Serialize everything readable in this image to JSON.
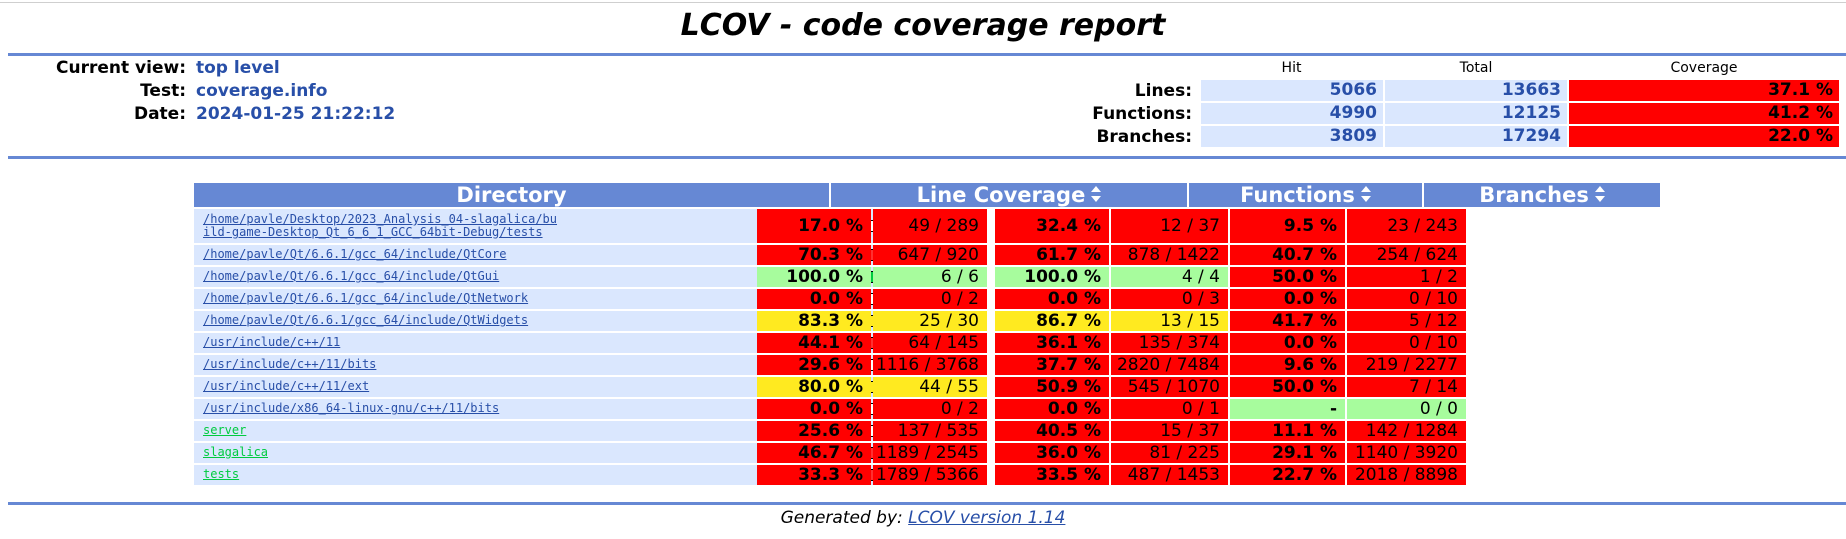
{
  "title": "LCOV - code coverage report",
  "info": {
    "current_view_label": "Current view:",
    "current_view": "top level",
    "test_label": "Test:",
    "test": "coverage.info",
    "date_label": "Date:",
    "date": "2024-01-25 21:22:12"
  },
  "summary": {
    "hit_header": "Hit",
    "total_header": "Total",
    "coverage_header": "Coverage",
    "rows": [
      {
        "label": "Lines:",
        "hit": "5066",
        "total": "13663",
        "coverage": "37.1 %"
      },
      {
        "label": "Functions:",
        "hit": "4990",
        "total": "12125",
        "coverage": "41.2 %"
      },
      {
        "label": "Branches:",
        "hit": "3809",
        "total": "17294",
        "coverage": "22.0 %"
      }
    ]
  },
  "table": {
    "headers": {
      "directory": "Directory",
      "line_coverage": "Line Coverage",
      "functions": "Functions",
      "branches": "Branches"
    },
    "rows": [
      {
        "dir": "/home/pavle/Desktop/2023_Analysis_04-slagalica/build-game-Desktop_Qt_6_6_1_GCC_64bit-Debug/tests",
        "link": "blue",
        "line_fill": 0.17,
        "line_pct": "17.0 %",
        "line_cnt": "49 / 289",
        "line_lvl": "lo",
        "fn_pct": "32.4 %",
        "fn_cnt": "12 / 37",
        "fn_lvl": "lo",
        "br_pct": "9.5 %",
        "br_cnt": "23 / 243",
        "br_lvl": "lo"
      },
      {
        "dir": "/home/pavle/Qt/6.6.1/gcc_64/include/QtCore",
        "link": "blue",
        "line_fill": 0.703,
        "line_pct": "70.3 %",
        "line_cnt": "647 / 920",
        "line_lvl": "lo",
        "fn_pct": "61.7 %",
        "fn_cnt": "878 / 1422",
        "fn_lvl": "lo",
        "br_pct": "40.7 %",
        "br_cnt": "254 / 624",
        "br_lvl": "lo"
      },
      {
        "dir": "/home/pavle/Qt/6.6.1/gcc_64/include/QtGui",
        "link": "blue",
        "line_fill": 1.0,
        "line_pct": "100.0 %",
        "line_cnt": "6 / 6",
        "line_lvl": "hi",
        "fn_pct": "100.0 %",
        "fn_cnt": "4 / 4",
        "fn_lvl": "hi",
        "br_pct": "50.0 %",
        "br_cnt": "1 / 2",
        "br_lvl": "lo"
      },
      {
        "dir": "/home/pavle/Qt/6.6.1/gcc_64/include/QtNetwork",
        "link": "blue",
        "line_fill": 0.0,
        "line_pct": "0.0 %",
        "line_cnt": "0 / 2",
        "line_lvl": "lo",
        "fn_pct": "0.0 %",
        "fn_cnt": "0 / 3",
        "fn_lvl": "lo",
        "br_pct": "0.0 %",
        "br_cnt": "0 / 10",
        "br_lvl": "lo"
      },
      {
        "dir": "/home/pavle/Qt/6.6.1/gcc_64/include/QtWidgets",
        "link": "blue",
        "line_fill": 0.833,
        "line_pct": "83.3 %",
        "line_cnt": "25 / 30",
        "line_lvl": "med",
        "fn_pct": "86.7 %",
        "fn_cnt": "13 / 15",
        "fn_lvl": "med",
        "br_pct": "41.7 %",
        "br_cnt": "5 / 12",
        "br_lvl": "lo"
      },
      {
        "dir": "/usr/include/c++/11",
        "link": "blue",
        "line_fill": 0.441,
        "line_pct": "44.1 %",
        "line_cnt": "64 / 145",
        "line_lvl": "lo",
        "fn_pct": "36.1 %",
        "fn_cnt": "135 / 374",
        "fn_lvl": "lo",
        "br_pct": "0.0 %",
        "br_cnt": "0 / 10",
        "br_lvl": "lo"
      },
      {
        "dir": "/usr/include/c++/11/bits",
        "link": "blue",
        "line_fill": 0.296,
        "line_pct": "29.6 %",
        "line_cnt": "1116 / 3768",
        "line_lvl": "lo",
        "fn_pct": "37.7 %",
        "fn_cnt": "2820 / 7484",
        "fn_lvl": "lo",
        "br_pct": "9.6 %",
        "br_cnt": "219 / 2277",
        "br_lvl": "lo"
      },
      {
        "dir": "/usr/include/c++/11/ext",
        "link": "blue",
        "line_fill": 0.8,
        "line_pct": "80.0 %",
        "line_cnt": "44 / 55",
        "line_lvl": "med",
        "fn_pct": "50.9 %",
        "fn_cnt": "545 / 1070",
        "fn_lvl": "lo",
        "br_pct": "50.0 %",
        "br_cnt": "7 / 14",
        "br_lvl": "lo"
      },
      {
        "dir": "/usr/include/x86_64-linux-gnu/c++/11/bits",
        "link": "blue",
        "line_fill": 0.0,
        "line_pct": "0.0 %",
        "line_cnt": "0 / 2",
        "line_lvl": "lo",
        "fn_pct": "0.0 %",
        "fn_cnt": "0 / 1",
        "fn_lvl": "lo",
        "br_pct": "-",
        "br_cnt": "0 / 0",
        "br_lvl": "hi"
      },
      {
        "dir": "server",
        "link": "green",
        "line_fill": 0.256,
        "line_pct": "25.6 %",
        "line_cnt": "137 / 535",
        "line_lvl": "lo",
        "fn_pct": "40.5 %",
        "fn_cnt": "15 / 37",
        "fn_lvl": "lo",
        "br_pct": "11.1 %",
        "br_cnt": "142 / 1284",
        "br_lvl": "lo"
      },
      {
        "dir": "slagalica",
        "link": "green",
        "line_fill": 0.467,
        "line_pct": "46.7 %",
        "line_cnt": "1189 / 2545",
        "line_lvl": "lo",
        "fn_pct": "36.0 %",
        "fn_cnt": "81 / 225",
        "fn_lvl": "lo",
        "br_pct": "29.1 %",
        "br_cnt": "1140 / 3920",
        "br_lvl": "lo"
      },
      {
        "dir": "tests",
        "link": "green",
        "line_fill": 0.333,
        "line_pct": "33.3 %",
        "line_cnt": "1789 / 5366",
        "line_lvl": "lo",
        "fn_pct": "33.5 %",
        "fn_cnt": "487 / 1453",
        "fn_lvl": "lo",
        "br_pct": "22.7 %",
        "br_cnt": "2018 / 8898",
        "br_lvl": "lo"
      }
    ]
  },
  "footer": {
    "prefix": "Generated by:",
    "link": "LCOV version 1.14"
  }
}
